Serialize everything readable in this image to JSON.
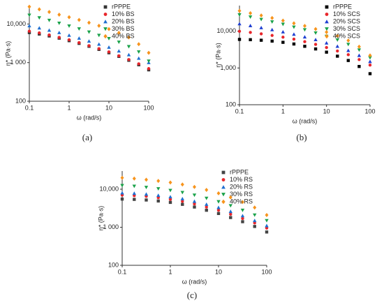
{
  "chart_data": [
    {
      "type": "scatter",
      "caption": "(a)",
      "xlabel": "ω (rad/s)",
      "ylabel": "η* (Pa·s)",
      "log_x": true,
      "log_y": true,
      "legend": "upper right",
      "xlim": [
        0.1,
        100
      ],
      "ylim": [
        100,
        30000
      ],
      "xticks": [
        0.1,
        1,
        10,
        100
      ],
      "yticks": [
        100,
        {
          "value": 1000,
          "label": "1 000"
        },
        {
          "value": 10000,
          "label": "10,000"
        }
      ],
      "x": [
        0.1,
        0.178,
        0.316,
        0.562,
        1,
        1.78,
        3.16,
        5.62,
        10,
        17.8,
        31.6,
        56.2,
        100
      ],
      "series": [
        {
          "name": "rPPPE",
          "color": "#333333",
          "marker": "square",
          "values": [
            6000,
            5500,
            4900,
            4300,
            3700,
            3150,
            2650,
            2200,
            1800,
            1450,
            1150,
            880,
            650
          ]
        },
        {
          "name": "10% BS",
          "color": "#e8262b",
          "marker": "circle",
          "values": [
            6500,
            5900,
            5200,
            4500,
            3900,
            3300,
            2750,
            2300,
            1900,
            1500,
            1200,
            930,
            700
          ]
        },
        {
          "name": "20% BS",
          "color": "#1f6fd1",
          "marker": "triangle",
          "values": [
            9000,
            7900,
            6900,
            6000,
            5100,
            4300,
            3600,
            3000,
            2500,
            2000,
            1600,
            1300,
            1000
          ]
        },
        {
          "name": "30% BS",
          "color": "#1aa24a",
          "marker": "triangle-down",
          "values": [
            17000,
            14500,
            12500,
            10500,
            8900,
            7500,
            6200,
            5100,
            4200,
            3400,
            2600,
            1900,
            1100
          ]
        },
        {
          "name": "40% BS",
          "color": "#f7941d",
          "marker": "diamond",
          "values": [
            28000,
            24000,
            20500,
            17500,
            15000,
            12800,
            10800,
            9000,
            7400,
            5900,
            4500,
            3000,
            1800
          ]
        }
      ]
    },
    {
      "type": "scatter",
      "caption": "(b)",
      "xlabel": "ω (rad/s)",
      "ylabel": "η* (Pa·s)",
      "log_x": true,
      "log_y": true,
      "legend": "upper right",
      "xlim": [
        0.1,
        100
      ],
      "ylim": [
        100,
        50000
      ],
      "xticks": [
        0.1,
        1,
        10,
        100
      ],
      "yticks": [
        100,
        {
          "value": 1000,
          "label": "1,000"
        },
        {
          "value": 10000,
          "label": "10,000"
        }
      ],
      "x": [
        0.1,
        0.178,
        0.316,
        0.562,
        1,
        1.78,
        3.16,
        5.62,
        10,
        17.8,
        31.6,
        56.2,
        100
      ],
      "series": [
        {
          "name": "rPPPE",
          "color": "#000000",
          "marker": "square",
          "values": [
            6000,
            5900,
            5700,
            5400,
            5000,
            4500,
            3900,
            3300,
            2700,
            2100,
            1600,
            1100,
            700
          ]
        },
        {
          "name": "10% SCS",
          "color": "#e8262b",
          "marker": "circle",
          "values": [
            10000,
            9300,
            8500,
            7700,
            6900,
            6100,
            5200,
            4400,
            3600,
            2900,
            2300,
            1700,
            1200
          ]
        },
        {
          "name": "20% SCS",
          "color": "#1f3fd1",
          "marker": "triangle",
          "values": [
            16000,
            14200,
            12500,
            11000,
            9600,
            8300,
            7000,
            5900,
            4800,
            3900,
            3000,
            2200,
            1500
          ]
        },
        {
          "name": "30% SCS",
          "color": "#1aa24a",
          "marker": "triangle-down",
          "values": [
            28000,
            24500,
            21000,
            18000,
            15500,
            13000,
            11000,
            9000,
            7300,
            5800,
            4400,
            3100,
            1900
          ]
        },
        {
          "name": "40% SCS",
          "color": "#f7941d",
          "marker": "diamond",
          "values": [
            36000,
            31000,
            27000,
            23000,
            19500,
            16500,
            14000,
            11500,
            9500,
            7500,
            5600,
            3800,
            2200
          ]
        }
      ]
    },
    {
      "type": "scatter",
      "caption": "(c)",
      "xlabel": "ω (rad/s)",
      "ylabel": "η* (Pa·s)",
      "log_x": true,
      "log_y": true,
      "legend": "upper right",
      "xlim": [
        0.1,
        100
      ],
      "ylim": [
        100,
        30000
      ],
      "xticks": [
        0.1,
        1,
        10,
        100
      ],
      "yticks": [
        100,
        {
          "value": 1000,
          "label": "1 000"
        },
        {
          "value": 10000,
          "label": "10,000"
        }
      ],
      "x": [
        0.1,
        0.178,
        0.316,
        0.562,
        1,
        1.78,
        3.16,
        5.62,
        10,
        17.8,
        31.6,
        56.2,
        100
      ],
      "series": [
        {
          "name": "rPPPE",
          "color": "#444444",
          "marker": "square",
          "values": [
            5500,
            5400,
            5200,
            4900,
            4500,
            4000,
            3400,
            2800,
            2300,
            1800,
            1400,
            1050,
            750
          ]
        },
        {
          "name": "10% RS",
          "color": "#e8262b",
          "marker": "circle",
          "values": [
            7000,
            6800,
            6500,
            6000,
            5400,
            4800,
            4100,
            3400,
            2800,
            2200,
            1700,
            1300,
            950
          ]
        },
        {
          "name": "20% RS",
          "color": "#1f6fd1",
          "marker": "triangle",
          "values": [
            8000,
            7800,
            7400,
            6900,
            6300,
            5600,
            4800,
            4000,
            3300,
            2600,
            2000,
            1500,
            1100
          ]
        },
        {
          "name": "30% RS",
          "color": "#1aa24a",
          "marker": "triangle-down",
          "values": [
            12500,
            12000,
            11200,
            10300,
            9300,
            8200,
            7000,
            5800,
            4700,
            3700,
            2800,
            2100,
            1500
          ]
        },
        {
          "name": "40% RS",
          "color": "#f7941d",
          "marker": "diamond",
          "values": [
            20000,
            19000,
            17800,
            16500,
            15000,
            13300,
            11500,
            9600,
            7800,
            6100,
            4600,
            3300,
            2100
          ]
        }
      ]
    }
  ]
}
